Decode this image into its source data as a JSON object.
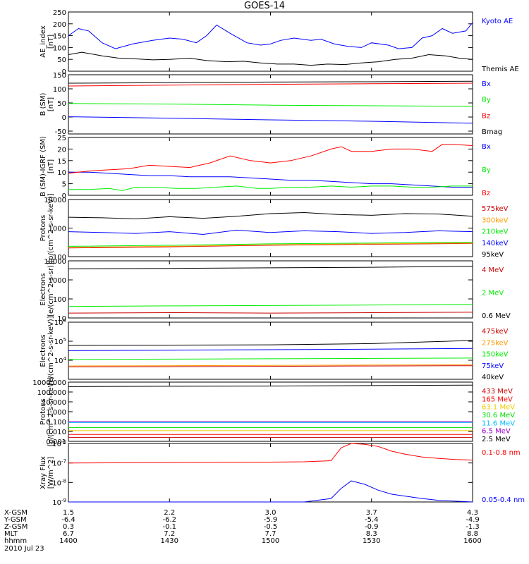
{
  "title": "GOES-14",
  "colors": {
    "black": "#000000",
    "blue": "#0000ff",
    "red": "#ff0000",
    "green": "#00ee00",
    "yellow": "#eecc00",
    "orange": "#ff9900",
    "cyan": "#00bbff",
    "darkred": "#cc0000",
    "purple": "#9900cc",
    "lime": "#00dd00"
  },
  "chart_data": [
    {
      "type": "line",
      "ylabel": [
        "AE_index",
        "[nT]"
      ],
      "ylim": [
        0,
        250
      ],
      "scale": "linear",
      "yticks": [
        "0",
        "50",
        "100",
        "150",
        "200",
        "250"
      ],
      "series": [
        {
          "name": "Kyoto AE",
          "color": "blue",
          "x": [
            1400,
            1403,
            1406,
            1410,
            1414,
            1419,
            1425,
            1430,
            1434,
            1438,
            1441,
            1444,
            1448,
            1453,
            1457,
            1500,
            1503,
            1507,
            1512,
            1515,
            1519,
            1523,
            1527,
            1530,
            1535,
            1538,
            1542,
            1545,
            1548,
            1551,
            1554,
            1558,
            1600
          ],
          "y": [
            150,
            180,
            170,
            120,
            95,
            115,
            130,
            140,
            135,
            120,
            150,
            195,
            160,
            120,
            110,
            115,
            130,
            140,
            130,
            135,
            115,
            105,
            100,
            120,
            110,
            95,
            100,
            140,
            150,
            180,
            160,
            170,
            205
          ]
        },
        {
          "name": "Themis AE",
          "color": "black",
          "x": [
            1400,
            1404,
            1410,
            1415,
            1420,
            1425,
            1430,
            1436,
            1441,
            1447,
            1452,
            1457,
            1502,
            1507,
            1512,
            1517,
            1522,
            1527,
            1532,
            1537,
            1542,
            1547,
            1552,
            1556,
            1600
          ],
          "y": [
            70,
            80,
            65,
            55,
            52,
            48,
            50,
            55,
            45,
            40,
            42,
            35,
            30,
            30,
            25,
            30,
            28,
            35,
            40,
            50,
            55,
            70,
            65,
            55,
            50
          ]
        }
      ]
    },
    {
      "type": "line",
      "ylabel": [
        "B (SM)",
        "[nT]"
      ],
      "ylim": [
        -60,
        150
      ],
      "scale": "linear",
      "yticks": [
        "-50",
        "0",
        "50",
        "100",
        "150"
      ],
      "series": [
        {
          "name": "Bx",
          "color": "blue",
          "x": [
            1400,
            1430,
            1500,
            1530,
            1600
          ],
          "y": [
            1,
            -4,
            -10,
            -15,
            -22
          ]
        },
        {
          "name": "By",
          "color": "green",
          "x": [
            1400,
            1430,
            1500,
            1530,
            1600
          ],
          "y": [
            48,
            46,
            42,
            40,
            38
          ]
        },
        {
          "name": "Bz",
          "color": "red",
          "x": [
            1400,
            1430,
            1500,
            1530,
            1600
          ],
          "y": [
            110,
            113,
            116,
            118,
            120
          ]
        },
        {
          "name": "Bmag",
          "color": "black",
          "x": [
            1400,
            1430,
            1500,
            1530,
            1600
          ],
          "y": [
            120,
            122,
            124,
            125,
            127
          ]
        }
      ]
    },
    {
      "type": "line",
      "ylabel": [
        "B (SM)-IGRF (SM)",
        "[nT]"
      ],
      "ylim": [
        0,
        25
      ],
      "scale": "linear",
      "yticks": [
        "0",
        "5",
        "10",
        "15",
        "20",
        "25"
      ],
      "series": [
        {
          "name": "Bx",
          "color": "blue",
          "x": [
            1400,
            1406,
            1412,
            1418,
            1424,
            1430,
            1436,
            1442,
            1448,
            1454,
            1500,
            1506,
            1512,
            1518,
            1524,
            1530,
            1536,
            1542,
            1548,
            1554,
            1600
          ],
          "y": [
            10,
            10,
            9.5,
            9,
            8.5,
            8.5,
            8,
            8,
            8,
            7.5,
            7,
            6.5,
            6.5,
            6,
            5.5,
            5,
            5,
            4.5,
            4,
            3.5,
            3.5
          ]
        },
        {
          "name": "By",
          "color": "green",
          "x": [
            1400,
            1406,
            1412,
            1416,
            1420,
            1426,
            1432,
            1438,
            1444,
            1450,
            1456,
            1500,
            1506,
            1512,
            1518,
            1524,
            1530,
            1536,
            1542,
            1548,
            1554,
            1600
          ],
          "y": [
            2.5,
            2.5,
            3,
            2,
            3.5,
            3.5,
            3,
            3,
            3.5,
            4,
            3,
            3,
            3.5,
            3.5,
            4,
            3.5,
            4,
            4,
            3.5,
            3.5,
            4,
            4
          ]
        },
        {
          "name": "Bz",
          "color": "red",
          "x": [
            1400,
            1406,
            1412,
            1418,
            1424,
            1430,
            1436,
            1442,
            1448,
            1454,
            1500,
            1506,
            1512,
            1518,
            1521,
            1524,
            1530,
            1536,
            1542,
            1548,
            1551,
            1554,
            1600
          ],
          "y": [
            9.5,
            10.5,
            11,
            11.5,
            13,
            12.5,
            12,
            14,
            17,
            15,
            14,
            15,
            17,
            20,
            21,
            19,
            19,
            20,
            20,
            19,
            22,
            22,
            21.5
          ]
        }
      ]
    },
    {
      "type": "line",
      "ylabel": [
        "Protons",
        "[p/(cm^2-s-sr-keV)]"
      ],
      "ylim": [
        100,
        10000
      ],
      "scale": "log",
      "yticks": [
        "100",
        "1000",
        "10000"
      ],
      "series": [
        {
          "name": "575keV",
          "color": "darkred",
          "x": [
            1400,
            1430,
            1500,
            1530,
            1600
          ],
          "y": [
            200,
            220,
            250,
            270,
            290
          ]
        },
        {
          "name": "300keV",
          "color": "orange",
          "x": [
            1400,
            1430,
            1500,
            1530,
            1600
          ],
          "y": [
            210,
            230,
            260,
            280,
            300
          ]
        },
        {
          "name": "210keV",
          "color": "green",
          "x": [
            1400,
            1430,
            1500,
            1530,
            1600
          ],
          "y": [
            230,
            250,
            280,
            300,
            320
          ]
        },
        {
          "name": "140keV",
          "color": "blue",
          "x": [
            1400,
            1410,
            1420,
            1430,
            1440,
            1450,
            1500,
            1510,
            1520,
            1530,
            1540,
            1550,
            1600
          ],
          "y": [
            750,
            700,
            650,
            750,
            600,
            850,
            700,
            800,
            750,
            650,
            700,
            800,
            750
          ]
        },
        {
          "name": "95keV",
          "color": "black",
          "x": [
            1400,
            1410,
            1420,
            1430,
            1440,
            1450,
            1500,
            1510,
            1520,
            1530,
            1540,
            1550,
            1600
          ],
          "y": [
            2400,
            2300,
            2100,
            2500,
            2200,
            2600,
            3200,
            3500,
            3000,
            2800,
            3200,
            3100,
            2600
          ]
        }
      ]
    },
    {
      "type": "line",
      "ylabel": [
        "Electrons",
        "[e/(cm^2-s-sr)]"
      ],
      "ylim": [
        10,
        10000
      ],
      "scale": "log",
      "yticks": [
        "10",
        "100",
        "1000",
        "10000"
      ],
      "series": [
        {
          "name": "4 MeV",
          "color": "darkred",
          "x": [
            1400,
            1430,
            1500,
            1530,
            1600
          ],
          "y": [
            18,
            19,
            18,
            19,
            20
          ]
        },
        {
          "name": "2 MeV",
          "color": "green",
          "x": [
            1400,
            1430,
            1500,
            1530,
            1600
          ],
          "y": [
            40,
            43,
            45,
            48,
            52
          ]
        },
        {
          "name": "0.6 MeV",
          "color": "black",
          "x": [
            1400,
            1430,
            1500,
            1530,
            1600
          ],
          "y": [
            3800,
            4000,
            4300,
            4600,
            5200
          ]
        }
      ]
    },
    {
      "type": "line",
      "ylabel": [
        "Electrons",
        "[e/(cm^2-s-sr-keV)]"
      ],
      "ylim": [
        1000,
        1000000
      ],
      "scale": "log",
      "yticks": [
        "10^4",
        "10^5",
        "10^6"
      ],
      "series": [
        {
          "name": "475keV",
          "color": "darkred",
          "x": [
            1400,
            1430,
            1500,
            1530,
            1600
          ],
          "y": [
            4500,
            4600,
            4800,
            5000,
            5200
          ]
        },
        {
          "name": "275keV",
          "color": "orange",
          "x": [
            1400,
            1430,
            1500,
            1530,
            1600
          ],
          "y": [
            5000,
            5200,
            5400,
            5600,
            5800
          ]
        },
        {
          "name": "150keV",
          "color": "green",
          "x": [
            1400,
            1430,
            1500,
            1530,
            1600
          ],
          "y": [
            11000,
            11500,
            12000,
            12500,
            13000
          ]
        },
        {
          "name": "75keV",
          "color": "blue",
          "x": [
            1400,
            1430,
            1500,
            1530,
            1600
          ],
          "y": [
            32000,
            34000,
            36000,
            38000,
            42000
          ]
        },
        {
          "name": "40keV",
          "color": "black",
          "x": [
            1400,
            1430,
            1500,
            1530,
            1600
          ],
          "y": [
            60000,
            62000,
            65000,
            75000,
            110000
          ]
        }
      ]
    },
    {
      "type": "line",
      "ylabel": [
        "Protons",
        "[p/(cm^2-s-sr-keV)]"
      ],
      "ylim": [
        0.001,
        1000
      ],
      "scale": "log",
      "yticks": [
        "0.001",
        "0.010",
        "0.100",
        "1.000",
        "10.000",
        "100.000",
        "1000.000"
      ],
      "series": [
        {
          "name": "433 MeV",
          "color": "darkred",
          "x": [
            1400,
            1430,
            1500,
            1530,
            1600
          ],
          "y": [
            0.0025,
            0.0025,
            0.0025,
            0.0025,
            0.0025
          ]
        },
        {
          "name": "165 MeV",
          "color": "red",
          "x": [
            1400,
            1430,
            1500,
            1530,
            1600
          ],
          "y": [
            0.005,
            0.005,
            0.005,
            0.005,
            0.005
          ]
        },
        {
          "name": "63.1 MeV",
          "color": "yellow",
          "x": [
            1400,
            1430,
            1500,
            1530,
            1600
          ],
          "y": [
            0.012,
            0.012,
            0.012,
            0.012,
            0.012
          ]
        },
        {
          "name": "30.6 MeV",
          "color": "lime",
          "x": [
            1400,
            1430,
            1500,
            1530,
            1600
          ],
          "y": [
            0.025,
            0.025,
            0.025,
            0.025,
            0.025
          ]
        },
        {
          "name": "11.6 MeV",
          "color": "cyan",
          "x": [
            1400,
            1430,
            1500,
            1530,
            1600
          ],
          "y": [
            0.08,
            0.08,
            0.08,
            0.08,
            0.08
          ]
        },
        {
          "name": "6.5 MeV",
          "color": "purple",
          "x": [
            1400,
            1430,
            1500,
            1530,
            1600
          ],
          "y": [
            0.1,
            0.1,
            0.1,
            0.1,
            0.1
          ]
        },
        {
          "name": "2.5 MeV",
          "color": "black",
          "x": [
            1400,
            1430,
            1500,
            1530,
            1600
          ],
          "y": [
            350,
            380,
            400,
            450,
            500
          ]
        }
      ]
    },
    {
      "type": "line",
      "ylabel": [
        "Xray Flux",
        "[W/m^2]"
      ],
      "ylim": [
        1e-09,
        1e-06
      ],
      "scale": "log",
      "yticks": [
        "10^-9",
        "10^-8",
        "10^-7",
        "10^-6"
      ],
      "series": [
        {
          "name": "0.1-0.8 nm",
          "color": "red",
          "x": [
            1400,
            1430,
            1500,
            1510,
            1518,
            1521,
            1524,
            1528,
            1532,
            1536,
            1540,
            1545,
            1550,
            1555,
            1600
          ],
          "y": [
            1e-07,
            1.05e-07,
            1.1e-07,
            1.15e-07,
            1.3e-07,
            6e-07,
            1e-06,
            9e-07,
            7e-07,
            4e-07,
            2.8e-07,
            2e-07,
            1.7e-07,
            1.5e-07,
            1.4e-07
          ]
        },
        {
          "name": "0.05-0.4 nm",
          "color": "blue",
          "x": [
            1400,
            1430,
            1500,
            1510,
            1518,
            1521,
            1524,
            1528,
            1532,
            1536,
            1540,
            1545,
            1550,
            1555,
            1600
          ],
          "y": [
            1e-09,
            1e-09,
            1e-09,
            1e-09,
            1.5e-09,
            5e-09,
            1.2e-08,
            8e-09,
            4e-09,
            2.5e-09,
            2e-09,
            1.5e-09,
            1.2e-09,
            1.1e-09,
            1e-09
          ]
        }
      ]
    }
  ],
  "xaxis": {
    "ticks": [
      1400,
      1430,
      1500,
      1530,
      1600
    ],
    "rows": [
      {
        "label": "X-GSM",
        "values": [
          "1.5",
          "2.2",
          "3.0",
          "3.7",
          "4.3"
        ]
      },
      {
        "label": "Y-GSM",
        "values": [
          "-6.4",
          "-6.2",
          "-5.9",
          "-5.4",
          "-4.9"
        ]
      },
      {
        "label": "Z-GSM",
        "values": [
          "0.3",
          "-0.1",
          "-0.5",
          "-0.9",
          "-1.3"
        ]
      },
      {
        "label": "MLT",
        "values": [
          "6.7",
          "7.2",
          "7.7",
          "8.3",
          "8.8"
        ]
      },
      {
        "label": "hhmm",
        "values": [
          "1400",
          "1430",
          "1500",
          "1530",
          "1600"
        ]
      }
    ],
    "date": "2010 Jul 23"
  }
}
